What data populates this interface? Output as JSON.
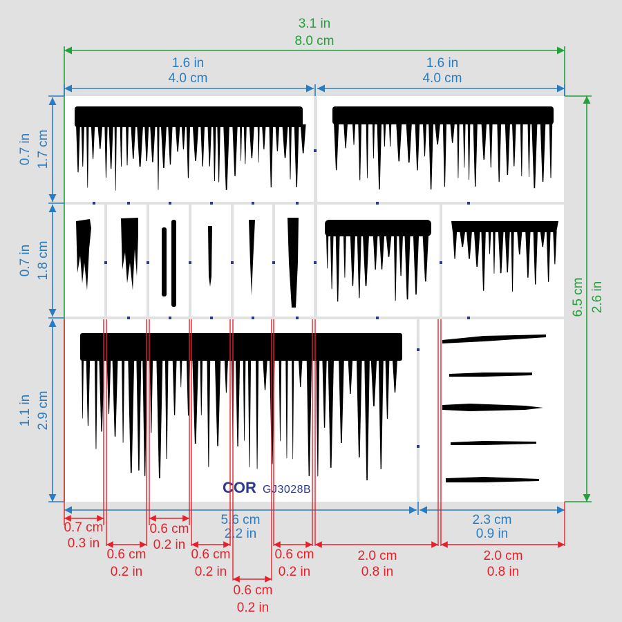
{
  "colors": {
    "background": "#e1e1e1",
    "panel": "#ffffff",
    "ink": "#000000",
    "green_dimension": "#22a03a",
    "blue_dimension": "#2a7cc0",
    "red_dimension": "#e8202a",
    "brand": "#2b3a8c"
  },
  "dimensions": {
    "total_width": {
      "in": "3.1 in",
      "cm": "8.0 cm"
    },
    "top_left_width": {
      "in": "1.6 in",
      "cm": "4.0 cm"
    },
    "top_right_width": {
      "in": "1.6 in",
      "cm": "4.0 cm"
    },
    "row1_height": {
      "in": "0.7 in",
      "cm": "1.7 cm"
    },
    "row2_height": {
      "in": "0.7 in",
      "cm": "1.8 cm"
    },
    "row3_height": {
      "in": "1.1 in",
      "cm": "2.9 cm"
    },
    "total_height": {
      "cm": "6.5 cm",
      "in": "2.6 in"
    },
    "bottom_left_width": {
      "cm": "5.6 cm",
      "in": "2.2 in"
    },
    "bottom_right_width": {
      "cm": "2.3 cm",
      "in": "0.9 in"
    },
    "stroke1": {
      "cm": "0.7 cm",
      "in": "0.3 in"
    },
    "stroke2": {
      "cm": "0.6 cm",
      "in": "0.2 in"
    },
    "stroke3": {
      "cm": "0.6 cm",
      "in": "0.2 in"
    },
    "stroke4": {
      "cm": "0.6 cm",
      "in": "0.2 in"
    },
    "stroke5": {
      "cm": "0.6 cm",
      "in": "0.2 in"
    },
    "stroke6": {
      "cm": "0.6 cm",
      "in": "0.2 in"
    },
    "drip_left": {
      "cm": "2.0 cm",
      "in": "0.8 in"
    },
    "drip_right": {
      "cm": "2.0 cm",
      "in": "0.8 in"
    }
  },
  "brand": {
    "logo": "COR",
    "code": "GJ3028B"
  }
}
